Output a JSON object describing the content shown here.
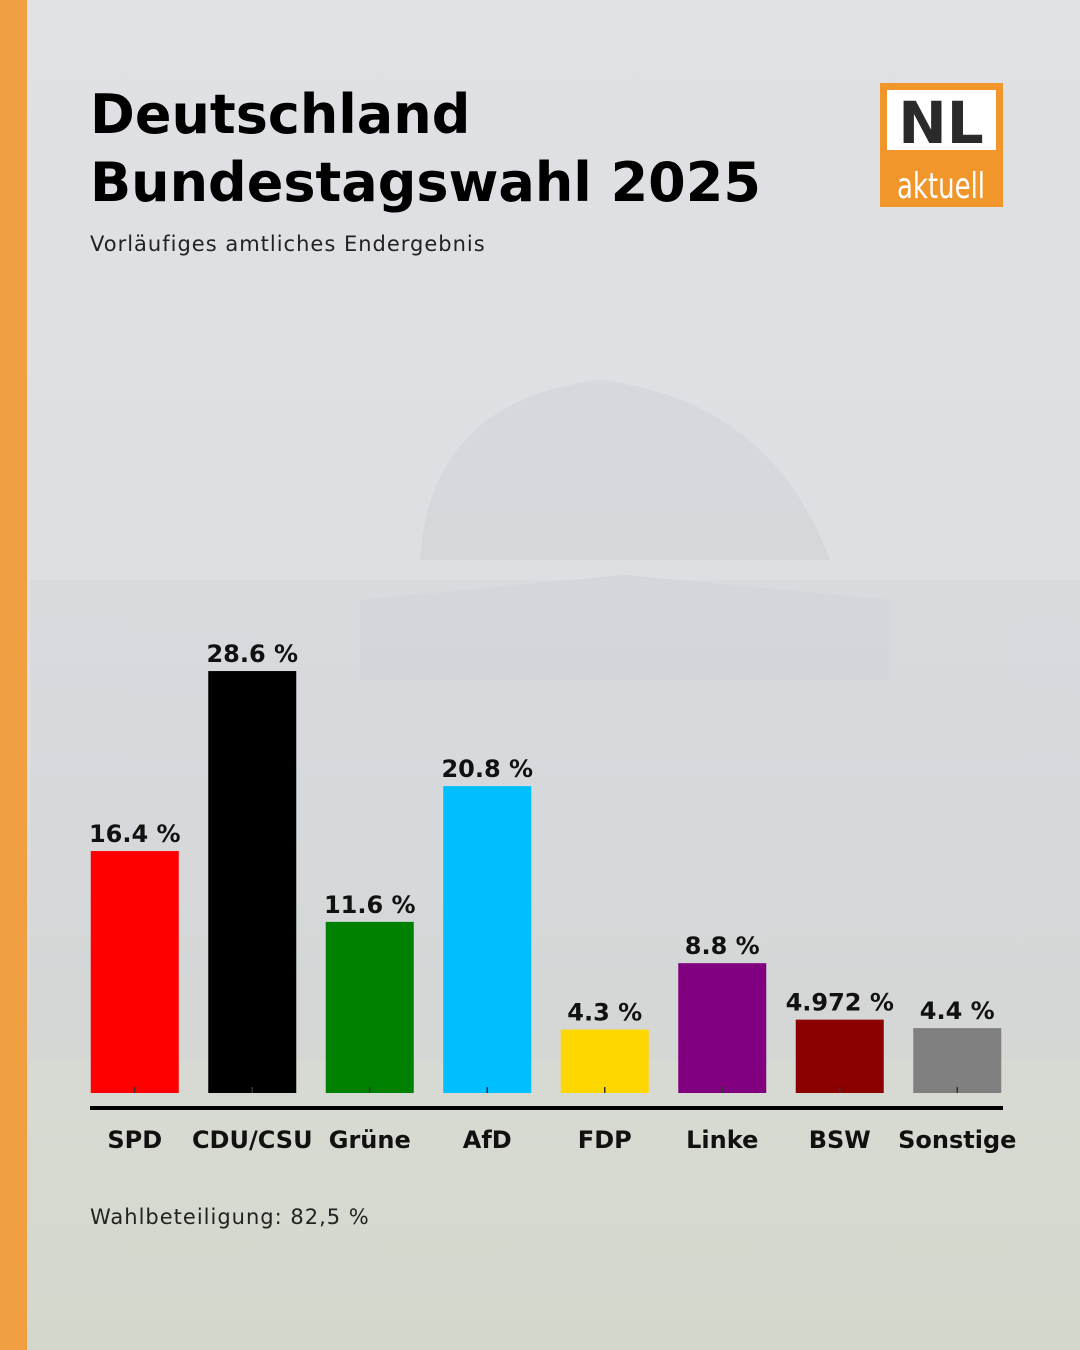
{
  "chart_data": {
    "type": "bar",
    "title": [
      "Deutschland",
      "Bundestagswahl 2025"
    ],
    "subtitle": "Vorläufiges amtliches Endergebnis",
    "footnote": "Wahlbeteiligung: 82,5 %",
    "logo": [
      "NL",
      "aktuell"
    ],
    "categories": [
      "SPD",
      "CDU/CSU",
      "Grüne",
      "AfD",
      "FDP",
      "Linke",
      "BSW",
      "Sonstige"
    ],
    "values": [
      16.4,
      28.6,
      11.6,
      20.8,
      4.3,
      8.8,
      4.972,
      4.4
    ],
    "value_labels": [
      "16.4 %",
      "28.6 %",
      "11.6 %",
      "20.8 %",
      "4.3 %",
      "8.8 %",
      "4.972 %",
      "4.4 %"
    ],
    "colors": [
      "#ff0000",
      "#000000",
      "#008000",
      "#00bfff",
      "#ffd700",
      "#800080",
      "#8b0000",
      "#808080"
    ],
    "ylim": [
      0,
      30
    ]
  }
}
